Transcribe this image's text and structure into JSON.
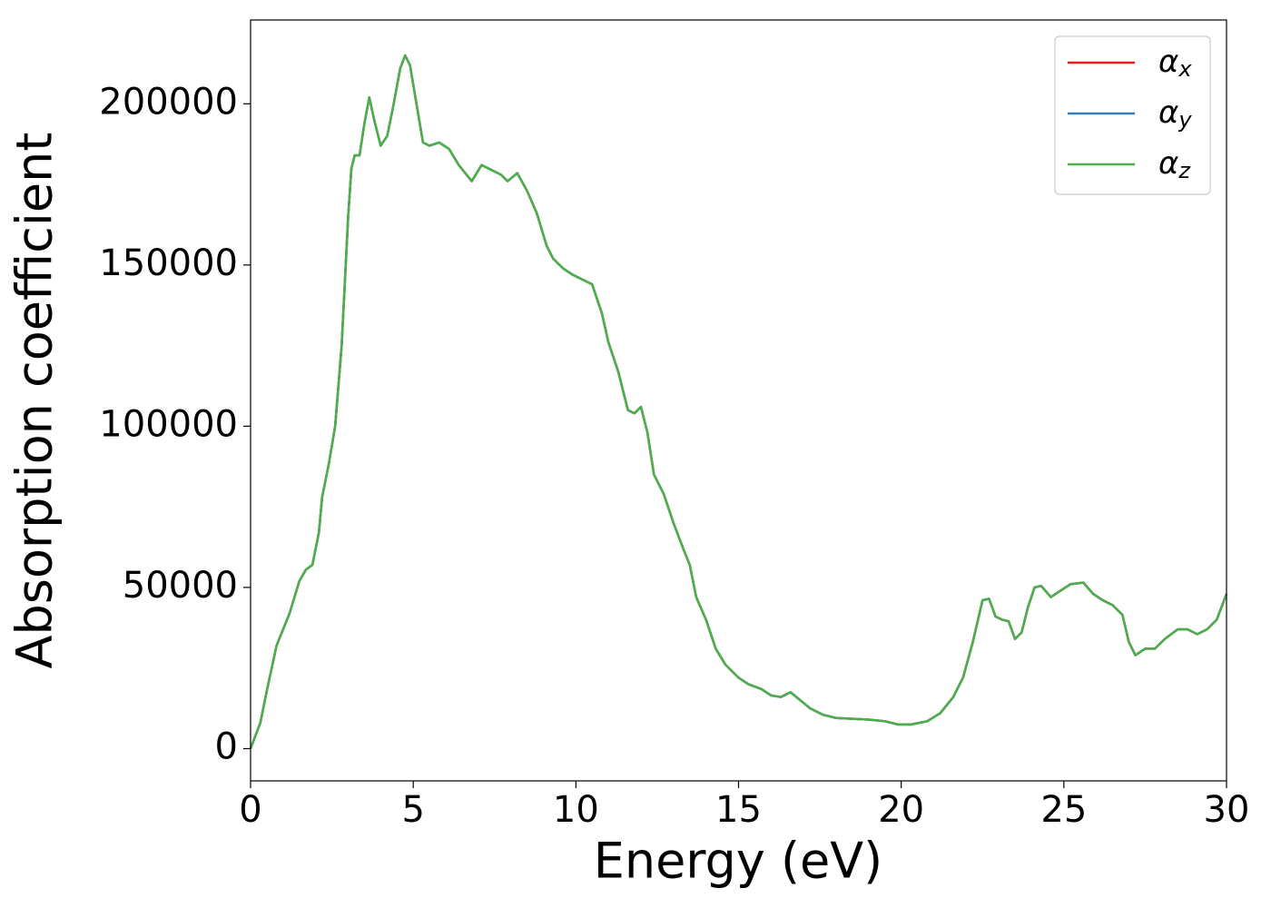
{
  "chart_data": {
    "type": "line",
    "xlabel": "Energy (eV)",
    "ylabel": "Absorption coefficient",
    "x": [
      0,
      0.3,
      0.5,
      0.8,
      1.0,
      1.2,
      1.5,
      1.7,
      1.9,
      2.1,
      2.2,
      2.4,
      2.6,
      2.8,
      3.0,
      3.1,
      3.2,
      3.35,
      3.5,
      3.65,
      3.8,
      4.0,
      4.2,
      4.4,
      4.6,
      4.75,
      4.9,
      5.1,
      5.3,
      5.5,
      5.8,
      6.1,
      6.4,
      6.8,
      7.1,
      7.4,
      7.7,
      7.9,
      8.2,
      8.5,
      8.8,
      9.1,
      9.3,
      9.6,
      9.9,
      10.2,
      10.5,
      10.8,
      11.0,
      11.3,
      11.6,
      11.8,
      12.0,
      12.2,
      12.4,
      12.7,
      13.0,
      13.3,
      13.5,
      13.7,
      14.0,
      14.3,
      14.6,
      15.0,
      15.3,
      15.7,
      16.0,
      16.3,
      16.6,
      16.9,
      17.2,
      17.6,
      18.0,
      19.0,
      19.5,
      19.9,
      20.3,
      20.8,
      21.2,
      21.6,
      21.9,
      22.2,
      22.5,
      22.7,
      22.9,
      23.1,
      23.3,
      23.5,
      23.7,
      23.9,
      24.1,
      24.3,
      24.6,
      24.9,
      25.2,
      25.6,
      25.9,
      26.2,
      26.5,
      26.8,
      27.0,
      27.2,
      27.5,
      27.8,
      28.1,
      28.5,
      28.8,
      29.1,
      29.4,
      29.7,
      30.0
    ],
    "series": [
      {
        "name": "α_x",
        "color": "#e41a1c",
        "values": [
          0,
          8000,
          18000,
          32000,
          37000,
          42000,
          52000,
          55500,
          57000,
          67000,
          78000,
          88000,
          100000,
          125000,
          165000,
          180000,
          184000,
          184000,
          194000,
          202000,
          195000,
          187000,
          190000,
          200000,
          211000,
          215000,
          212000,
          200000,
          188000,
          187000,
          188000,
          186000,
          181000,
          176000,
          181000,
          179500,
          178000,
          176000,
          178500,
          173000,
          166000,
          156000,
          152000,
          149000,
          147000,
          145500,
          144000,
          135000,
          126000,
          117000,
          105000,
          104000,
          106000,
          98000,
          85000,
          79000,
          70000,
          62000,
          57000,
          47000,
          40000,
          31000,
          26000,
          22000,
          20000,
          18500,
          16500,
          16000,
          17500,
          15000,
          12500,
          10500,
          9500,
          9000,
          8500,
          7500,
          7500,
          8500,
          11000,
          16000,
          22000,
          33000,
          46000,
          46500,
          41000,
          40000,
          39500,
          34000,
          36000,
          44000,
          50000,
          50500,
          47000,
          49000,
          51000,
          51500,
          48000,
          46000,
          44500,
          41500,
          33000,
          29000,
          31000,
          31000,
          34000,
          37000,
          37000,
          35500,
          37000,
          40000,
          48000
        ]
      },
      {
        "name": "α_y",
        "color": "#377eb8",
        "values": [
          0,
          8000,
          18000,
          32000,
          37000,
          42000,
          52000,
          55500,
          57000,
          67000,
          78000,
          88000,
          100000,
          125000,
          165000,
          180000,
          184000,
          184000,
          194000,
          202000,
          195000,
          187000,
          190000,
          200000,
          211000,
          215000,
          212000,
          200000,
          188000,
          187000,
          188000,
          186000,
          181000,
          176000,
          181000,
          179500,
          178000,
          176000,
          178500,
          173000,
          166000,
          156000,
          152000,
          149000,
          147000,
          145500,
          144000,
          135000,
          126000,
          117000,
          105000,
          104000,
          106000,
          98000,
          85000,
          79000,
          70000,
          62000,
          57000,
          47000,
          40000,
          31000,
          26000,
          22000,
          20000,
          18500,
          16500,
          16000,
          17500,
          15000,
          12500,
          10500,
          9500,
          9000,
          8500,
          7500,
          7500,
          8500,
          11000,
          16000,
          22000,
          33000,
          46000,
          46500,
          41000,
          40000,
          39500,
          34000,
          36000,
          44000,
          50000,
          50500,
          47000,
          49000,
          51000,
          51500,
          48000,
          46000,
          44500,
          41500,
          33000,
          29000,
          31000,
          31000,
          34000,
          37000,
          37000,
          35500,
          37000,
          40000,
          48000
        ]
      },
      {
        "name": "α_z",
        "color": "#4daf4a",
        "values": [
          0,
          8000,
          18000,
          32000,
          37000,
          42000,
          52000,
          55500,
          57000,
          67000,
          78000,
          88000,
          100000,
          125000,
          165000,
          180000,
          184000,
          184000,
          194000,
          202000,
          195000,
          187000,
          190000,
          200000,
          211000,
          215000,
          212000,
          200000,
          188000,
          187000,
          188000,
          186000,
          181000,
          176000,
          181000,
          179500,
          178000,
          176000,
          178500,
          173000,
          166000,
          156000,
          152000,
          149000,
          147000,
          145500,
          144000,
          135000,
          126000,
          117000,
          105000,
          104000,
          106000,
          98000,
          85000,
          79000,
          70000,
          62000,
          57000,
          47000,
          40000,
          31000,
          26000,
          22000,
          20000,
          18500,
          16500,
          16000,
          17500,
          15000,
          12500,
          10500,
          9500,
          9000,
          8500,
          7500,
          7500,
          8500,
          11000,
          16000,
          22000,
          33000,
          46000,
          46500,
          41000,
          40000,
          39500,
          34000,
          36000,
          44000,
          50000,
          50500,
          47000,
          49000,
          51000,
          51500,
          48000,
          46000,
          44500,
          41500,
          33000,
          29000,
          31000,
          31000,
          34000,
          37000,
          37000,
          35500,
          37000,
          40000,
          48000
        ]
      }
    ],
    "xlim": [
      0,
      30
    ],
    "xticks": [
      0,
      5,
      10,
      15,
      20,
      25,
      30
    ],
    "ylim": [
      -10000,
      226000
    ],
    "yticks": [
      0,
      50000,
      100000,
      150000,
      200000
    ],
    "grid": false,
    "legend": "upper right"
  }
}
